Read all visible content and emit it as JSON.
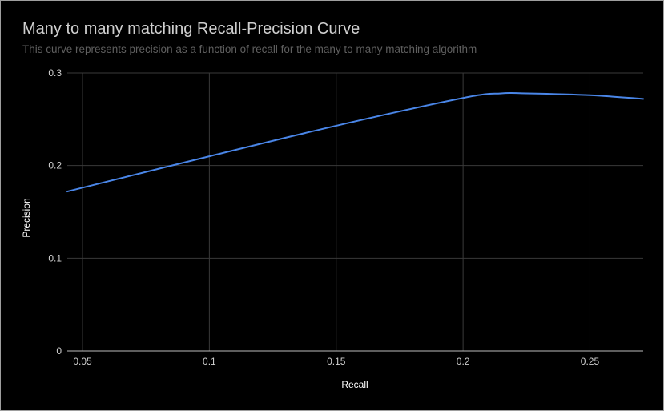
{
  "chart_data": {
    "type": "line",
    "title": "Many to many matching Recall-Precision Curve",
    "subtitle": "This curve represents precision as a function of recall for the many to many matching algorithm",
    "xlabel": "Recall",
    "ylabel": "Precision",
    "xlim": [
      0.044,
      0.271
    ],
    "ylim": [
      0,
      0.3
    ],
    "x_ticks": [
      "0.05",
      "0.1",
      "0.15",
      "0.2",
      "0.25"
    ],
    "y_ticks": [
      "0",
      "0.1",
      "0.2",
      "0.3"
    ],
    "grid": true,
    "legend": "none",
    "series": [
      {
        "color": "#4a86e8",
        "x": [
          0.044,
          0.1,
          0.15,
          0.2,
          0.215,
          0.225,
          0.25,
          0.271
        ],
        "y": [
          0.172,
          0.21,
          0.243,
          0.273,
          0.278,
          0.278,
          0.276,
          0.272
        ]
      }
    ],
    "colors": {
      "background": "#000000",
      "grid": "#3a3a3a",
      "axis": "#bdbdbd",
      "title": "#cfcfcf",
      "subtitle": "#5f5f5f"
    }
  }
}
